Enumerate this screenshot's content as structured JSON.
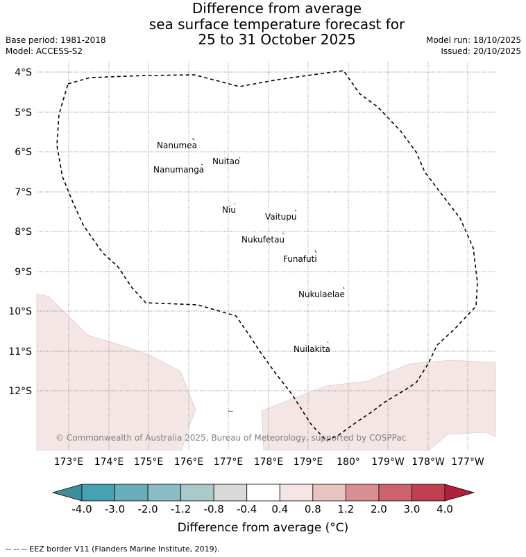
{
  "title": {
    "line1": "Difference from average",
    "line2": "sea surface temperature forecast for",
    "line3": "25 to 31 October 2025"
  },
  "meta": {
    "base_period": "Base period: 1981-2018",
    "model": "Model: ACCESS-S2",
    "model_run": "Model run: 18/10/2025",
    "issued": "Issued: 20/10/2025"
  },
  "map": {
    "lat_labels": [
      "4°S",
      "5°S",
      "6°S",
      "7°S",
      "8°S",
      "9°S",
      "10°S",
      "11°S",
      "12°S"
    ],
    "lon_labels": [
      "173°E",
      "174°E",
      "175°E",
      "176°E",
      "177°E",
      "178°E",
      "179°E",
      "180°",
      "179°W",
      "178°W",
      "177°W"
    ],
    "islands": [
      {
        "name": "Nanumea"
      },
      {
        "name": "Nuitao"
      },
      {
        "name": "Nanumanga"
      },
      {
        "name": "Niu"
      },
      {
        "name": "Vaitupu"
      },
      {
        "name": "Nukufetau"
      },
      {
        "name": "Funafuti"
      },
      {
        "name": "Nukulaelae"
      },
      {
        "name": "Nuilakita"
      }
    ],
    "copyright": "© Commonwealth of Australia 2025, Bureau of Meteorology, supported by COSPPac",
    "anomaly_fill_color": "#f4e6e4",
    "eez_line_style": "dashed"
  },
  "colorbar": {
    "title": "Difference from average (°C)",
    "tick_labels": [
      "-4.0",
      "-3.0",
      "-2.0",
      "-1.2",
      "-0.8",
      "-0.4",
      "0.4",
      "0.8",
      "1.2",
      "2.0",
      "3.0",
      "4.0"
    ],
    "colors": [
      "#3e8e9b",
      "#48a0b3",
      "#6aaebc",
      "#8bbbc5",
      "#a9c9cb",
      "#d7dad9",
      "#ffffff",
      "#f4e6e4",
      "#e8c3c1",
      "#d98e94",
      "#cc6470",
      "#c0404f",
      "#b01f3b"
    ]
  },
  "footer": {
    "eez_legend": "-- -- -- EEZ border V11 (Flanders Marine Institute, 2019)."
  }
}
